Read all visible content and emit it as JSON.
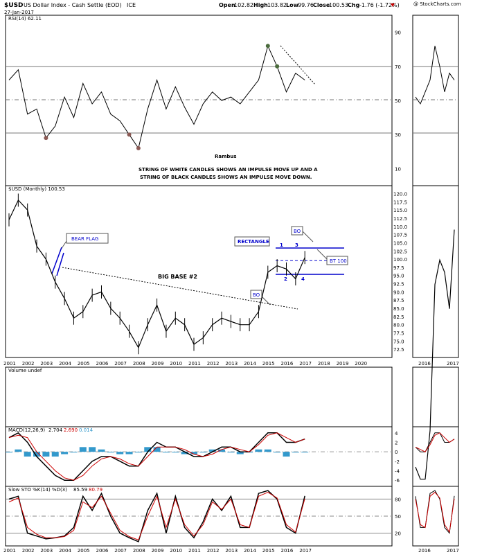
{
  "header": {
    "symbol": "$USD",
    "name": "US Dollar Index - Cash Settle (EOD)",
    "exchange": "ICE",
    "date": "27-Jan-2017",
    "open_label": "Open",
    "open": "102.82",
    "high_label": "High",
    "high": "103.82",
    "low_label": "Low",
    "low": "99.76",
    "close_label": "Close",
    "close": "100.53",
    "chg_label": "Chg",
    "chg": "-1.76 (-1.72%)",
    "credit": "@ StockCharts.com"
  },
  "colors": {
    "rsi_overbought": "#4a6b3c",
    "rsi_oversold": "#8b5a55",
    "annotation": "#0000cc",
    "macd_signal": "#cc0000",
    "histogram": "#3399cc"
  },
  "annotations": {
    "author": "Rambus",
    "note_line1": "STRING OF WHITE CANDLES SHOWS AN IMPULSE MOVE UP AND A",
    "note_line2": "STRING OF BLACK CANDLES SHOWS AN IMPULSE MOVE DOWN.",
    "bear_flag": "BEAR FLAG",
    "big_base": "BIG BASE #2",
    "rectangle": "RECTANGLE",
    "bo_upper": "BO",
    "bo_lower": "BO",
    "bt": "BT 100",
    "point1": "1",
    "point2": "2",
    "point3": "3",
    "point4": "4"
  },
  "chart_data": [
    {
      "type": "line",
      "title": "RSI(14) 62.11",
      "panel": "rsi",
      "y_ticks": [
        "90",
        "70",
        "50",
        "30",
        "10"
      ],
      "ylim": [
        0,
        100
      ],
      "reference_lines": [
        70,
        50,
        30
      ],
      "x": [
        2001,
        2001.5,
        2002,
        2002.5,
        2003,
        2003.5,
        2004,
        2004.5,
        2005,
        2005.5,
        2006,
        2006.5,
        2007,
        2007.5,
        2008,
        2008.5,
        2009,
        2009.5,
        2010,
        2010.5,
        2011,
        2011.5,
        2012,
        2012.5,
        2013,
        2013.5,
        2014,
        2014.5,
        2015,
        2015.5,
        2016,
        2016.5,
        2017
      ],
      "values": [
        62,
        68,
        42,
        45,
        28,
        35,
        52,
        40,
        60,
        48,
        55,
        42,
        38,
        30,
        22,
        45,
        62,
        45,
        58,
        46,
        36,
        48,
        55,
        50,
        52,
        48,
        55,
        62,
        82,
        70,
        55,
        66,
        62
      ]
    },
    {
      "type": "line",
      "title": "$USD (Monthly) 100.53",
      "panel": "price",
      "y_ticks": [
        "120.0",
        "117.5",
        "115.0",
        "112.5",
        "110.0",
        "107.5",
        "105.0",
        "102.5",
        "100.0",
        "97.5",
        "95.0",
        "92.5",
        "90.0",
        "87.5",
        "85.0",
        "82.5",
        "80.0",
        "77.5",
        "75.0",
        "72.5"
      ],
      "x_ticks": [
        "2001",
        "2002",
        "2003",
        "2004",
        "2005",
        "2006",
        "2007",
        "2008",
        "2009",
        "2010",
        "2011",
        "2012",
        "2013",
        "2014",
        "2015",
        "2016",
        "2017",
        "2018",
        "2019",
        "2020"
      ],
      "ylim": [
        70,
        122
      ],
      "x": [
        2001,
        2001.5,
        2002,
        2002.5,
        2003,
        2003.5,
        2004,
        2004.5,
        2005,
        2005.5,
        2006,
        2006.5,
        2007,
        2007.5,
        2008,
        2008.5,
        2009,
        2009.5,
        2010,
        2010.5,
        2011,
        2011.5,
        2012,
        2012.5,
        2013,
        2013.5,
        2014,
        2014.5,
        2015,
        2015.5,
        2016,
        2016.5,
        2017
      ],
      "values": [
        112,
        118,
        115,
        104,
        100,
        93,
        88,
        82,
        84,
        89,
        90,
        85,
        82,
        78,
        73,
        80,
        86,
        78,
        82,
        80,
        74,
        76,
        80,
        82,
        81,
        80,
        80,
        84,
        96,
        98,
        97,
        94,
        100.5
      ]
    },
    {
      "type": "bar",
      "title": "Volume undef",
      "panel": "volume"
    },
    {
      "type": "line",
      "title": "MACD(12,26,9)",
      "panel": "macd",
      "macd": "2.704",
      "signal": "2.690",
      "histogram_value": "0.014",
      "y_ticks": [
        "4",
        "2",
        "0",
        "-2",
        "-4",
        "-6"
      ],
      "ylim": [
        -7,
        5
      ],
      "x": [
        2001,
        2001.5,
        2002,
        2002.5,
        2003,
        2003.5,
        2004,
        2004.5,
        2005,
        2005.5,
        2006,
        2006.5,
        2007,
        2007.5,
        2008,
        2008.5,
        2009,
        2009.5,
        2010,
        2010.5,
        2011,
        2011.5,
        2012,
        2012.5,
        2013,
        2013.5,
        2014,
        2014.5,
        2015,
        2015.5,
        2016,
        2016.5,
        2017
      ],
      "series": [
        {
          "values": [
            3,
            4,
            2,
            -1,
            -3,
            -5,
            -6,
            -6,
            -4,
            -2,
            -1,
            -1,
            -2,
            -3,
            -3,
            0,
            2,
            1,
            1,
            0,
            -1,
            -1,
            0,
            1,
            1,
            0,
            0,
            2,
            4,
            4,
            2,
            2,
            2.7
          ]
        },
        {
          "values": [
            3,
            3.5,
            3,
            0,
            -2,
            -4,
            -5.5,
            -6,
            -5,
            -3,
            -1.5,
            -1,
            -1.5,
            -2.5,
            -3,
            -1,
            1,
            1,
            1,
            0.5,
            -0.5,
            -1,
            -0.5,
            0.5,
            1,
            0.5,
            0,
            1.5,
            3.5,
            4,
            3,
            2,
            2.69
          ]
        }
      ],
      "histogram": [
        0,
        0.5,
        -1,
        -1,
        -1,
        -1,
        -0.5,
        0,
        1,
        1,
        0.5,
        0,
        -0.5,
        -0.5,
        0,
        1,
        1,
        0,
        0,
        -0.5,
        -0.5,
        0,
        0.5,
        0.5,
        0,
        -0.5,
        0,
        0.5,
        0.5,
        0,
        -1,
        0,
        0.01
      ]
    },
    {
      "type": "line",
      "title": "Slow STO %K(14) %D(3)",
      "panel": "sto",
      "k": "85.59",
      "d": "80.79",
      "y_ticks": [
        "80",
        "50",
        "20"
      ],
      "ylim": [
        0,
        100
      ],
      "reference_lines": [
        80,
        50,
        20
      ],
      "x": [
        2001,
        2001.5,
        2002,
        2002.5,
        2003,
        2003.5,
        2004,
        2004.5,
        2005,
        2005.5,
        2006,
        2006.5,
        2007,
        2007.5,
        2008,
        2008.5,
        2009,
        2009.5,
        2010,
        2010.5,
        2011,
        2011.5,
        2012,
        2012.5,
        2013,
        2013.5,
        2014,
        2014.5,
        2015,
        2015.5,
        2016,
        2016.5,
        2017
      ],
      "series": [
        {
          "values": [
            80,
            85,
            20,
            15,
            10,
            12,
            15,
            30,
            85,
            60,
            90,
            50,
            20,
            12,
            5,
            60,
            90,
            20,
            85,
            30,
            12,
            40,
            80,
            60,
            85,
            30,
            30,
            90,
            95,
            80,
            30,
            20,
            85.59
          ]
        },
        {
          "values": [
            75,
            82,
            30,
            18,
            12,
            12,
            14,
            25,
            75,
            65,
            85,
            55,
            25,
            14,
            8,
            50,
            85,
            30,
            80,
            35,
            15,
            35,
            75,
            62,
            80,
            35,
            30,
            85,
            92,
            82,
            35,
            22,
            80.79
          ]
        }
      ]
    }
  ]
}
